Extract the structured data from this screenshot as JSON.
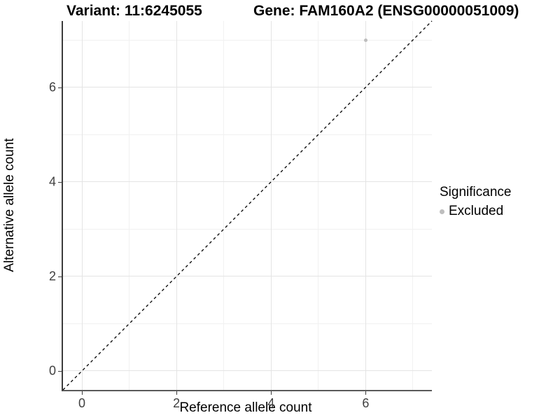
{
  "chart_data": {
    "type": "scatter",
    "title_left": "Variant: 11:6245055",
    "title_right": "Gene: FAM160A2 (ENSG00000051009)",
    "xlabel": "Reference allele count",
    "ylabel": "Alternative allele count",
    "xlim": [
      -0.4,
      7.4
    ],
    "ylim": [
      -0.4,
      7.4
    ],
    "x_ticks": [
      0,
      2,
      4,
      6
    ],
    "y_ticks": [
      0,
      2,
      4,
      6
    ],
    "x_minor_gridlines": [
      1,
      3,
      5,
      7
    ],
    "y_minor_gridlines": [
      1,
      3,
      5,
      7
    ],
    "grid": "on",
    "identity_line": {
      "slope": 1,
      "intercept": 0,
      "style": "dashed",
      "color": "#000000"
    },
    "series": [
      {
        "name": "Excluded",
        "color": "#bebebe",
        "points": [
          {
            "x": 6,
            "y": 7
          }
        ]
      }
    ],
    "legend": {
      "title": "Significance",
      "position": "right",
      "entries": [
        {
          "label": "Excluded",
          "color": "#bebebe"
        }
      ]
    },
    "colors": {
      "grid_major": "#e4e4e4",
      "grid_minor": "#f1f1f1",
      "axis_line": "#3c3c3c",
      "tick_text": "#404040"
    }
  }
}
